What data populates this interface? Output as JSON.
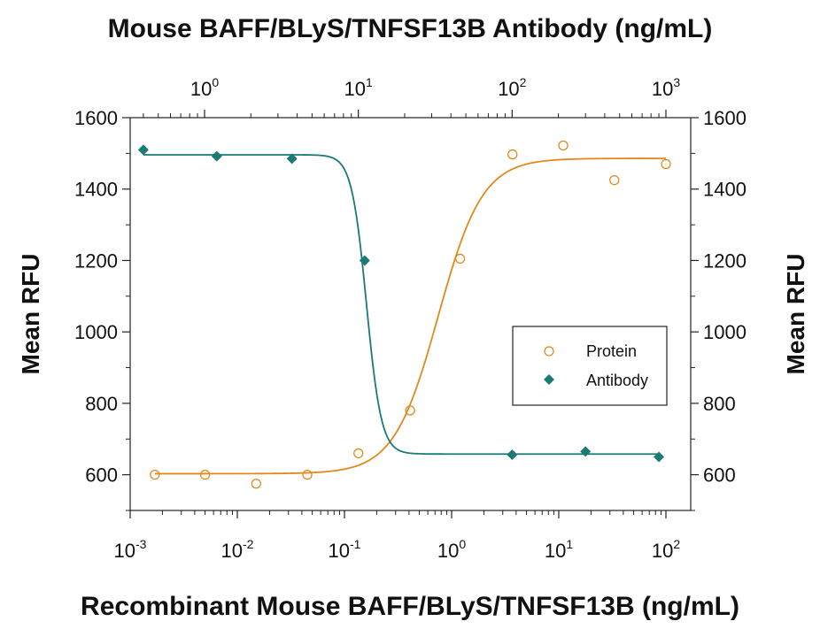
{
  "chart_data": {
    "type": "scatter",
    "title_top": "Mouse BAFF/BLyS/TNFSF13B Antibody (ng/mL)",
    "xlabel": "Recombinant Mouse BAFF/BLyS/TNFSF13B (ng/mL)",
    "ylabel_left": "Mean RFU",
    "ylabel_right": "Mean RFU",
    "x_scale": "log",
    "xlim_bottom": [
      0.001,
      200
    ],
    "xlim_top": [
      0.3,
      1300
    ],
    "ylim": [
      500,
      1600
    ],
    "y_ticks": [
      600,
      800,
      1000,
      1200,
      1400,
      1600
    ],
    "bottom_ticks": [
      {
        "base": "10",
        "exp": "-3"
      },
      {
        "base": "10",
        "exp": "-2"
      },
      {
        "base": "10",
        "exp": "-1"
      },
      {
        "base": "10",
        "exp": "0"
      },
      {
        "base": "10",
        "exp": "1"
      },
      {
        "base": "10",
        "exp": "2"
      }
    ],
    "top_ticks": [
      {
        "base": "10",
        "exp": "0"
      },
      {
        "base": "10",
        "exp": "1"
      },
      {
        "base": "10",
        "exp": "2"
      },
      {
        "base": "10",
        "exp": "3"
      }
    ],
    "legend": {
      "position": "right",
      "entries": [
        "Protein",
        "Antibody"
      ]
    },
    "colors": {
      "protein": "#e08a1e",
      "antibody": "#1a7a74"
    },
    "series": [
      {
        "name": "Protein",
        "axis": "bottom",
        "marker": "open-circle",
        "x": [
          0.0017,
          0.005,
          0.015,
          0.045,
          0.135,
          0.41,
          1.2,
          3.7,
          11,
          33,
          100
        ],
        "y": [
          600,
          600,
          575,
          600,
          660,
          780,
          1205,
          1497,
          1522,
          1425,
          1470
        ],
        "fit": {
          "bottom": 603,
          "top": 1486,
          "ec50": 0.75,
          "hill": 2.1
        }
      },
      {
        "name": "Antibody",
        "axis": "top",
        "marker": "filled-diamond",
        "x": [
          0.4,
          1.2,
          3.7,
          11,
          100,
          300,
          900
        ],
        "y": [
          1510,
          1492,
          1485,
          1200,
          656,
          665,
          650
        ],
        "fit": {
          "bottom": 658,
          "top": 1496,
          "ec50": 11.3,
          "hill": 9
        }
      }
    ]
  }
}
